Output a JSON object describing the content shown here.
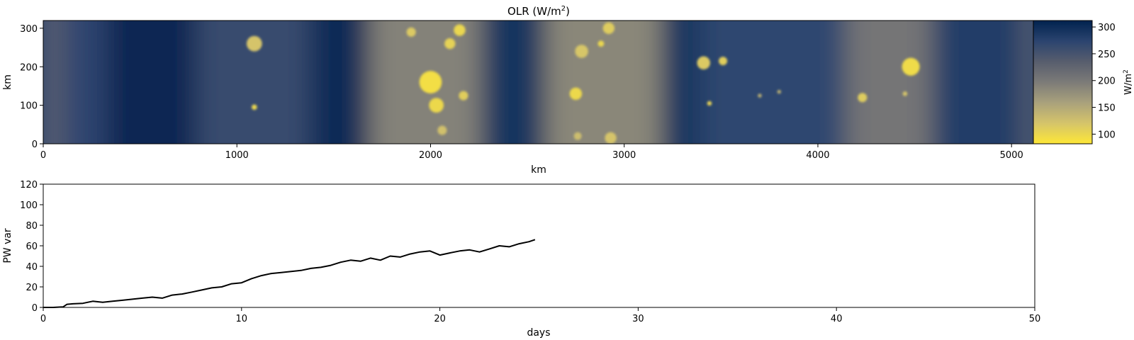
{
  "chart_data": [
    {
      "type": "heatmap",
      "title": "OLR (W/m",
      "title_sup": "2",
      "title_close": ")",
      "xlabel": "km",
      "ylabel": "km",
      "xlim": [
        0,
        5120
      ],
      "ylim": [
        0,
        320
      ],
      "xticks": [
        0,
        1000,
        2000,
        3000,
        4000,
        5000
      ],
      "yticks": [
        0,
        100,
        200,
        300
      ],
      "colormap": "cividis_r",
      "colorbar": {
        "label": "W/m",
        "label_sup": "2",
        "range": [
          82,
          312
        ],
        "ticks": [
          100,
          150,
          200,
          250,
          300
        ],
        "colors": [
          "#fde737",
          "#d5c46a",
          "#a9a17c",
          "#7c7b78",
          "#575d6d",
          "#2b446f",
          "#00224e"
        ]
      },
      "background_bands": [
        {
          "x": [
            0,
            110
          ],
          "value": 230
        },
        {
          "x": [
            110,
            330
          ],
          "value": 272
        },
        {
          "x": [
            330,
            800
          ],
          "value": 306
        },
        {
          "x": [
            800,
            1380
          ],
          "value": 262
        },
        {
          "x": [
            1380,
            1690
          ],
          "value": 302
        },
        {
          "x": [
            1690,
            2270
          ],
          "value": 190
        },
        {
          "x": [
            2270,
            2600
          ],
          "value": 292
        },
        {
          "x": [
            2600,
            3200
          ],
          "value": 185
        },
        {
          "x": [
            3200,
            3400
          ],
          "value": 292
        },
        {
          "x": [
            3400,
            4150
          ],
          "value": 270
        },
        {
          "x": [
            4150,
            4600
          ],
          "value": 205
        },
        {
          "x": [
            4600,
            5080
          ],
          "value": 282
        },
        {
          "x": [
            5080,
            5120
          ],
          "value": 215
        }
      ],
      "cells": [
        {
          "x": 1090,
          "y": 260,
          "r": 40,
          "value": 120
        },
        {
          "x": 1090,
          "y": 95,
          "r": 14,
          "value": 100
        },
        {
          "x": 1900,
          "y": 290,
          "r": 24,
          "value": 115
        },
        {
          "x": 2000,
          "y": 160,
          "r": 58,
          "value": 92
        },
        {
          "x": 2030,
          "y": 100,
          "r": 38,
          "value": 98
        },
        {
          "x": 2100,
          "y": 260,
          "r": 28,
          "value": 105
        },
        {
          "x": 2150,
          "y": 295,
          "r": 30,
          "value": 100
        },
        {
          "x": 2170,
          "y": 125,
          "r": 24,
          "value": 110
        },
        {
          "x": 2060,
          "y": 35,
          "r": 24,
          "value": 125
        },
        {
          "x": 2750,
          "y": 130,
          "r": 32,
          "value": 98
        },
        {
          "x": 2780,
          "y": 240,
          "r": 34,
          "value": 118
        },
        {
          "x": 2880,
          "y": 260,
          "r": 16,
          "value": 100
        },
        {
          "x": 2920,
          "y": 300,
          "r": 30,
          "value": 112
        },
        {
          "x": 2930,
          "y": 15,
          "r": 30,
          "value": 120
        },
        {
          "x": 2760,
          "y": 20,
          "r": 20,
          "value": 128
        },
        {
          "x": 3410,
          "y": 210,
          "r": 34,
          "value": 115
        },
        {
          "x": 3510,
          "y": 215,
          "r": 22,
          "value": 110
        },
        {
          "x": 3440,
          "y": 105,
          "r": 12,
          "value": 105
        },
        {
          "x": 3700,
          "y": 125,
          "r": 10,
          "value": 140
        },
        {
          "x": 3800,
          "y": 135,
          "r": 10,
          "value": 140
        },
        {
          "x": 4230,
          "y": 120,
          "r": 24,
          "value": 112
        },
        {
          "x": 4480,
          "y": 200,
          "r": 46,
          "value": 95
        },
        {
          "x": 4450,
          "y": 130,
          "r": 12,
          "value": 120
        }
      ]
    },
    {
      "type": "line",
      "title": "",
      "xlabel": "days",
      "ylabel": "PW var",
      "xlim": [
        0,
        50
      ],
      "ylim": [
        0,
        120
      ],
      "xticks": [
        0,
        10,
        20,
        30,
        40,
        50
      ],
      "yticks": [
        0,
        20,
        40,
        60,
        80,
        100,
        120
      ],
      "series": [
        {
          "color": "#000000",
          "x": [
            0,
            0.5,
            1.0,
            1.2,
            1.5,
            2.0,
            2.5,
            3.0,
            3.5,
            4.0,
            4.5,
            5.0,
            5.5,
            6.0,
            6.5,
            7.0,
            7.5,
            8.0,
            8.5,
            9.0,
            9.5,
            10.0,
            10.5,
            11.0,
            11.5,
            12.0,
            12.5,
            13.0,
            13.5,
            14.0,
            14.5,
            15.0,
            15.5,
            16.0,
            16.5,
            17.0,
            17.5,
            18.0,
            18.5,
            19.0,
            19.5,
            20.0,
            20.5,
            21.0,
            21.5,
            22.0,
            22.5,
            23.0,
            23.5,
            24.0,
            24.5,
            24.8
          ],
          "y": [
            0,
            0,
            0.5,
            3,
            3.5,
            4,
            6,
            5,
            6,
            7,
            8,
            9,
            10,
            9,
            12,
            13,
            15,
            17,
            19,
            20,
            23,
            24,
            28,
            31,
            33,
            34,
            35,
            36,
            38,
            39,
            41,
            44,
            46,
            45,
            48,
            46,
            50,
            49,
            52,
            54,
            55,
            51,
            53,
            55,
            56,
            54,
            57,
            60,
            59,
            62,
            64,
            66
          ]
        }
      ]
    }
  ]
}
